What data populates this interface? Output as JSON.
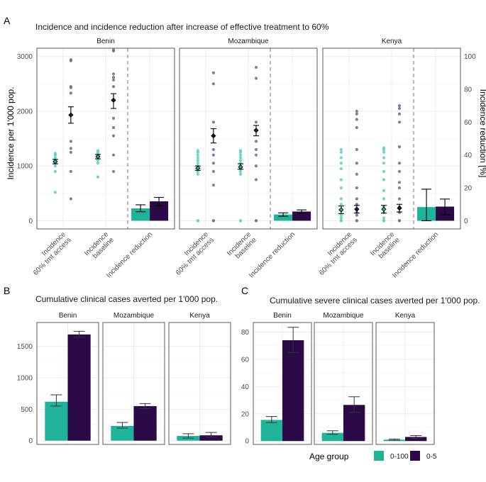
{
  "colors": {
    "age_0_100": "#1fb39a",
    "age_0_5": "#2b0a47",
    "age_0_100_light": "#5dd3bd",
    "age_0_5_light": "#7a6a9c"
  },
  "panel_tags": {
    "a": "A",
    "b": "B",
    "c": "C"
  },
  "legend": {
    "title": "Age group",
    "items": [
      "0-100",
      "0-5"
    ]
  },
  "chart_data": [
    {
      "id": "A",
      "type": "scatter",
      "title": "Incidence and incidence reduction after increase of effective treatment to 60%",
      "ylabel": "Incidence per 1'000 pop.",
      "ylabel_right": "Incidence reduction [%]",
      "ylim": [
        -150,
        3150
      ],
      "yticks": [
        0,
        1000,
        2000,
        3000
      ],
      "yticks_right": [
        0,
        20,
        40,
        60,
        80,
        100
      ],
      "categories": [
        "Incidence\n60% tmt access",
        "Incidence\nbaseline",
        "Incidence reduction"
      ],
      "facets": [
        {
          "name": "Benin",
          "points": {
            "tmt_0_100": [
              520,
              900,
              1000,
              1050,
              1100,
              1150,
              1200,
              1230
            ],
            "tmt_0_5": [
              400,
              900,
              1250,
              1320,
              1450,
              2330,
              2430,
              2450,
              2920,
              2940
            ],
            "base_0_100": [
              800,
              1050,
              1100,
              1150,
              1180,
              1200,
              1220,
              1250,
              1280
            ],
            "base_0_5": [
              900,
              1200,
              1550,
              1700,
              1870,
              2450,
              2570,
              2620,
              2680,
              3100,
              3120
            ]
          },
          "means": {
            "tmt_0_100": [
              1080,
              1040,
              1120
            ],
            "tmt_0_5": [
              1930,
              1780,
              2080
            ],
            "base_0_100": [
              1170,
              1130,
              1210
            ],
            "base_0_5": [
              2200,
              2050,
              2320
            ]
          },
          "reduction_pct": {
            "0_100": [
              7.5,
              5.5,
              9.7
            ],
            "0_5": [
              11.8,
              9.0,
              14.2
            ]
          }
        },
        {
          "name": "Mozambique",
          "points": {
            "tmt_0_100": [
              0,
              0,
              850,
              900,
              950,
              1000,
              1050,
              1100,
              1150,
              1200,
              1250,
              1280
            ],
            "tmt_0_5": [
              0,
              0,
              650,
              900,
              1050,
              1200,
              1300,
              1800,
              2500,
              2700
            ],
            "base_0_100": [
              0,
              0,
              850,
              900,
              950,
              1000,
              1050,
              1100,
              1150,
              1200,
              1250,
              1280
            ],
            "base_0_5": [
              0,
              0,
              750,
              1000,
              1200,
              1300,
              1450,
              1800,
              2600,
              2800
            ]
          },
          "means": {
            "tmt_0_100": [
              960,
              920,
              1000
            ],
            "tmt_0_5": [
              1550,
              1420,
              1680
            ],
            "base_0_100": [
              980,
              940,
              1040
            ],
            "base_0_5": [
              1650,
              1550,
              1740
            ]
          },
          "reduction_pct": {
            "0_100": [
              3.8,
              2.7,
              4.8
            ],
            "0_5": [
              5.6,
              4.5,
              6.6
            ]
          }
        },
        {
          "name": "Kenya",
          "points": {
            "tmt_0_100": [
              0,
              0,
              50,
              100,
              200,
              300,
              400,
              600,
              750,
              950,
              1050,
              1150,
              1250,
              1300
            ],
            "tmt_0_5": [
              0,
              0,
              100,
              150,
              300,
              400,
              600,
              850,
              1050,
              1300,
              1700,
              1850,
              1950,
              2000
            ],
            "base_0_100": [
              0,
              0,
              50,
              150,
              250,
              400,
              550,
              750,
              900,
              1050,
              1150,
              1250,
              1300,
              1330
            ],
            "base_0_5": [
              0,
              0,
              150,
              250,
              400,
              600,
              700,
              900,
              1050,
              1350,
              1800,
              1950,
              2050,
              2100
            ]
          },
          "means": {
            "tmt_0_100": [
              200,
              130,
              270
            ],
            "tmt_0_5": [
              210,
              140,
              280
            ],
            "base_0_100": [
              210,
              140,
              280
            ],
            "base_0_5": [
              230,
              160,
              300
            ]
          },
          "reduction_pct": {
            "0_100": [
              8.3,
              0.0,
              19.2
            ],
            "0_5": [
              8.6,
              3.8,
              13.2
            ]
          }
        }
      ]
    },
    {
      "id": "B",
      "type": "bar",
      "title": "Cumulative clinical cases averted per 1'000 pop.",
      "ylim": [
        -60,
        1880
      ],
      "yticks": [
        0,
        500,
        1000,
        1500
      ],
      "facets": [
        "Benin",
        "Mozambique",
        "Kenya"
      ],
      "series": [
        {
          "name": "0-100",
          "values": [
            620,
            235,
            75
          ],
          "lower": [
            550,
            200,
            40
          ],
          "upper": [
            730,
            290,
            110
          ]
        },
        {
          "name": "0-5",
          "values": [
            1690,
            550,
            85
          ],
          "lower": [
            1650,
            510,
            55
          ],
          "upper": [
            1740,
            590,
            130
          ]
        }
      ]
    },
    {
      "id": "C",
      "type": "bar",
      "title": "Cumulative severe clinical cases averted per 1'000 pop.",
      "ylim": [
        -2.5,
        87
      ],
      "yticks": [
        0,
        20,
        40,
        60,
        80
      ],
      "facets": [
        "Benin",
        "Mozambique",
        "Kenya"
      ],
      "series": [
        {
          "name": "0-100",
          "values": [
            15.5,
            6.0,
            1.0
          ],
          "lower": [
            13.5,
            5.0,
            0.5
          ],
          "upper": [
            18.0,
            7.5,
            1.5
          ]
        },
        {
          "name": "0-5",
          "values": [
            74,
            26.5,
            3.0
          ],
          "lower": [
            65,
            21,
            2.0
          ],
          "upper": [
            83.5,
            32.5,
            4.0
          ]
        }
      ]
    }
  ]
}
